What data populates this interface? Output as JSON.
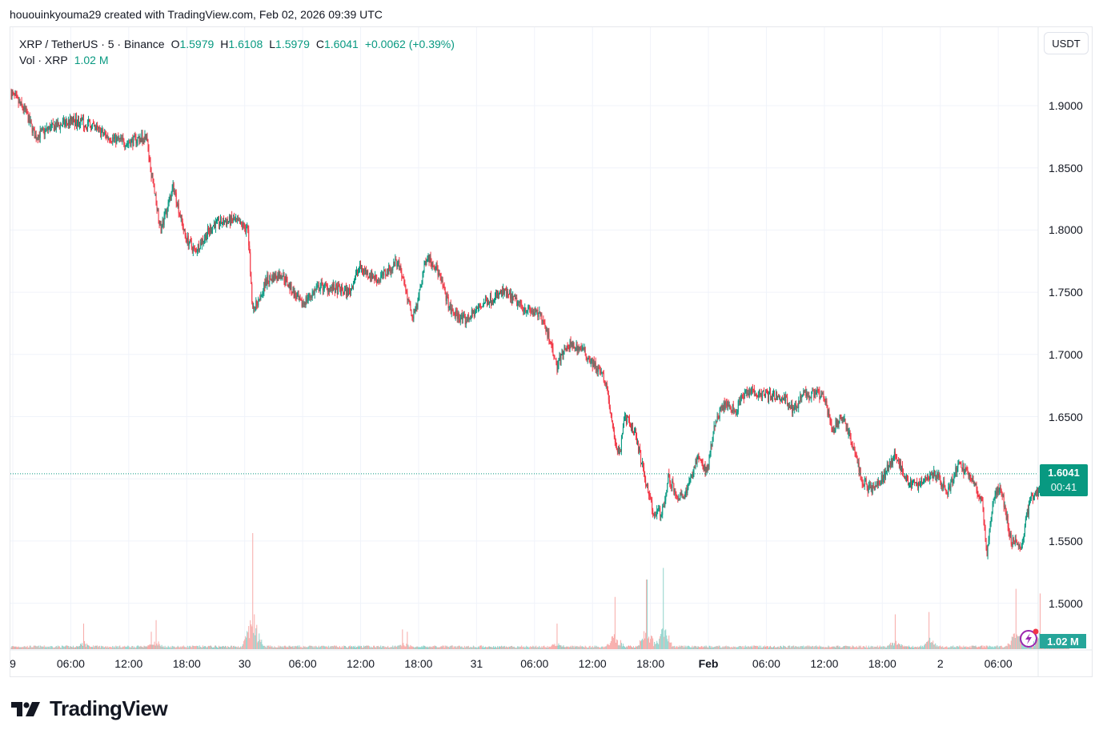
{
  "credit": "hououinkyouma29 created with TradingView.com, Feb 02, 2026 09:39 UTC",
  "legend": {
    "symbol": "XRP / TetherUS · 5 · Binance",
    "open_label": "O",
    "open": "1.5979",
    "high_label": "H",
    "high": "1.6108",
    "low_label": "L",
    "low": "1.5979",
    "close_label": "C",
    "close": "1.6041",
    "change": "+0.0062 (+0.39%)",
    "vol_label": "Vol · XRP",
    "vol_value": "1.02 M"
  },
  "currency_button": "USDT",
  "last_price": {
    "value": "1.6041",
    "countdown": "00:41"
  },
  "volume_badge": "1.02 M",
  "brand": "TradingView",
  "colors": {
    "up": "#089981",
    "down": "#f23645",
    "vol_up": "#8fd3cb",
    "vol_down": "#f7a9a7",
    "grid": "#f0f3fa",
    "last_price_line": "#089981"
  },
  "chart_data": {
    "type": "candlestick",
    "title": "XRP / TetherUS · 5 · Binance",
    "interval": "5m",
    "xlabel": "",
    "ylabel": "USDT",
    "ylim": [
      1.49,
      1.92
    ],
    "y_ticks": [
      "1.9000",
      "1.8500",
      "1.8000",
      "1.7500",
      "1.7000",
      "1.6500",
      "1.6000",
      "1.5500",
      "1.5000"
    ],
    "x_ticks": [
      "9",
      "06:00",
      "12:00",
      "18:00",
      "30",
      "06:00",
      "12:00",
      "18:00",
      "31",
      "06:00",
      "12:00",
      "18:00",
      "Feb",
      "06:00",
      "12:00",
      "18:00",
      "2",
      "06:00"
    ],
    "last_price": 1.6041,
    "price_path": [
      {
        "t": 0.0,
        "p": 1.91
      },
      {
        "t": 1.5,
        "p": 1.895
      },
      {
        "t": 2.5,
        "p": 1.875
      },
      {
        "t": 4.0,
        "p": 1.882
      },
      {
        "t": 6.5,
        "p": 1.888
      },
      {
        "t": 8.0,
        "p": 1.885
      },
      {
        "t": 10.0,
        "p": 1.875
      },
      {
        "t": 12.0,
        "p": 1.87
      },
      {
        "t": 14.0,
        "p": 1.876
      },
      {
        "t": 14.3,
        "p": 1.855
      },
      {
        "t": 15.5,
        "p": 1.8
      },
      {
        "t": 16.8,
        "p": 1.835
      },
      {
        "t": 18.0,
        "p": 1.795
      },
      {
        "t": 19.0,
        "p": 1.783
      },
      {
        "t": 21.0,
        "p": 1.805
      },
      {
        "t": 23.0,
        "p": 1.808
      },
      {
        "t": 24.5,
        "p": 1.8
      },
      {
        "t": 25.0,
        "p": 1.735
      },
      {
        "t": 26.5,
        "p": 1.76
      },
      {
        "t": 28.0,
        "p": 1.765
      },
      {
        "t": 30.0,
        "p": 1.74
      },
      {
        "t": 32.0,
        "p": 1.755
      },
      {
        "t": 35.0,
        "p": 1.75
      },
      {
        "t": 36.0,
        "p": 1.77
      },
      {
        "t": 38.0,
        "p": 1.76
      },
      {
        "t": 40.0,
        "p": 1.775
      },
      {
        "t": 41.5,
        "p": 1.73
      },
      {
        "t": 42.0,
        "p": 1.74
      },
      {
        "t": 43.0,
        "p": 1.78
      },
      {
        "t": 44.0,
        "p": 1.77
      },
      {
        "t": 45.5,
        "p": 1.735
      },
      {
        "t": 47.0,
        "p": 1.727
      },
      {
        "t": 49.0,
        "p": 1.742
      },
      {
        "t": 51.0,
        "p": 1.75
      },
      {
        "t": 53.0,
        "p": 1.738
      },
      {
        "t": 55.0,
        "p": 1.73
      },
      {
        "t": 56.5,
        "p": 1.69
      },
      {
        "t": 57.5,
        "p": 1.708
      },
      {
        "t": 59.0,
        "p": 1.705
      },
      {
        "t": 61.5,
        "p": 1.68
      },
      {
        "t": 62.5,
        "p": 1.63
      },
      {
        "t": 63.0,
        "p": 1.62
      },
      {
        "t": 63.5,
        "p": 1.648
      },
      {
        "t": 64.5,
        "p": 1.64
      },
      {
        "t": 65.5,
        "p": 1.605
      },
      {
        "t": 66.5,
        "p": 1.57
      },
      {
        "t": 67.5,
        "p": 1.575
      },
      {
        "t": 68.0,
        "p": 1.602
      },
      {
        "t": 69.0,
        "p": 1.585
      },
      {
        "t": 70.0,
        "p": 1.59
      },
      {
        "t": 71.0,
        "p": 1.618
      },
      {
        "t": 72.0,
        "p": 1.605
      },
      {
        "t": 73.0,
        "p": 1.65
      },
      {
        "t": 74.0,
        "p": 1.66
      },
      {
        "t": 75.0,
        "p": 1.655
      },
      {
        "t": 76.0,
        "p": 1.67
      },
      {
        "t": 78.0,
        "p": 1.668
      },
      {
        "t": 80.0,
        "p": 1.665
      },
      {
        "t": 81.0,
        "p": 1.655
      },
      {
        "t": 82.0,
        "p": 1.668
      },
      {
        "t": 84.0,
        "p": 1.668
      },
      {
        "t": 85.0,
        "p": 1.64
      },
      {
        "t": 86.0,
        "p": 1.65
      },
      {
        "t": 87.0,
        "p": 1.63
      },
      {
        "t": 88.0,
        "p": 1.6
      },
      {
        "t": 89.0,
        "p": 1.59
      },
      {
        "t": 90.0,
        "p": 1.598
      },
      {
        "t": 91.5,
        "p": 1.62
      },
      {
        "t": 92.5,
        "p": 1.6
      },
      {
        "t": 94.0,
        "p": 1.595
      },
      {
        "t": 95.5,
        "p": 1.605
      },
      {
        "t": 97.0,
        "p": 1.59
      },
      {
        "t": 98.0,
        "p": 1.612
      },
      {
        "t": 99.5,
        "p": 1.6
      },
      {
        "t": 100.5,
        "p": 1.58
      },
      {
        "t": 101.0,
        "p": 1.54
      },
      {
        "t": 101.8,
        "p": 1.59
      },
      {
        "t": 102.5,
        "p": 1.59
      },
      {
        "t": 103.5,
        "p": 1.55
      },
      {
        "t": 104.5,
        "p": 1.545
      },
      {
        "t": 105.5,
        "p": 1.585
      },
      {
        "t": 107.0,
        "p": 1.595
      },
      {
        "t": 108.5,
        "p": 1.6
      },
      {
        "t": 109.5,
        "p": 1.6041
      }
    ],
    "volume_spikes": [
      {
        "t": 7.5,
        "v": 0.22
      },
      {
        "t": 14.5,
        "v": 0.15
      },
      {
        "t": 15.0,
        "v": 0.25
      },
      {
        "t": 25.0,
        "v": 1.0
      },
      {
        "t": 40.5,
        "v": 0.17
      },
      {
        "t": 41.0,
        "v": 0.15
      },
      {
        "t": 56.5,
        "v": 0.22
      },
      {
        "t": 62.5,
        "v": 0.45
      },
      {
        "t": 65.8,
        "v": 0.6
      },
      {
        "t": 67.5,
        "v": 0.7
      },
      {
        "t": 91.5,
        "v": 0.3
      },
      {
        "t": 95.0,
        "v": 0.32
      },
      {
        "t": 104.0,
        "v": 0.52
      },
      {
        "t": 106.5,
        "v": 0.48
      }
    ],
    "volume_badge": "1.02 M"
  }
}
